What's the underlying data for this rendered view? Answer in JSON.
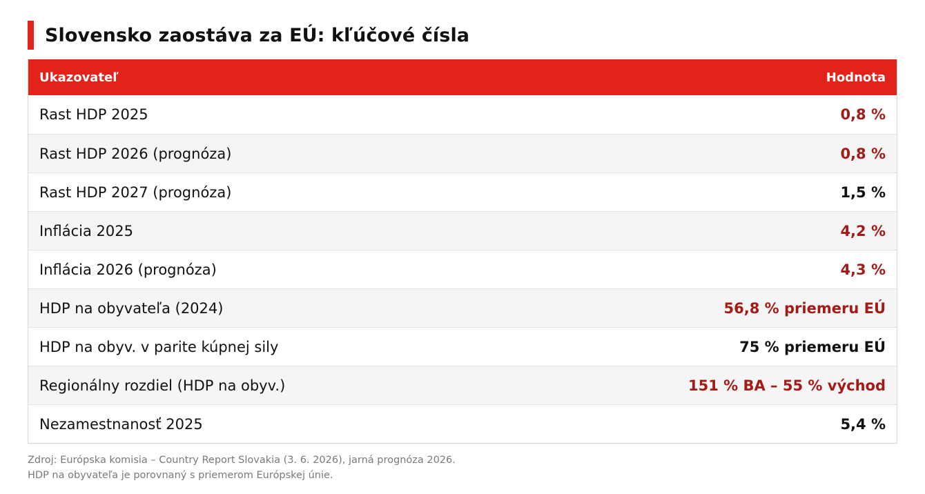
{
  "title": "Slovensko zaostáva za EÚ: kľúčové čísla",
  "table": {
    "header": {
      "indicator": "Ukazovateľ",
      "value": "Hodnota"
    },
    "rows": [
      {
        "label": "Rast HDP 2025",
        "value": "0,8 %",
        "highlight": true
      },
      {
        "label": "Rast HDP 2026 (prognóza)",
        "value": "0,8 %",
        "highlight": true
      },
      {
        "label": "Rast HDP 2027 (prognóza)",
        "value": "1,5 %",
        "highlight": false
      },
      {
        "label": "Inflácia 2025",
        "value": "4,2 %",
        "highlight": true
      },
      {
        "label": "Inflácia 2026 (prognóza)",
        "value": "4,3 %",
        "highlight": true
      },
      {
        "label": "HDP na obyvateľa (2024)",
        "value": "56,8 % priemeru EÚ",
        "highlight": true
      },
      {
        "label": "HDP na obyv. v parite kúpnej sily",
        "value": "75 % priemeru EÚ",
        "highlight": false
      },
      {
        "label": "Regionálny rozdiel (HDP na obyv.)",
        "value": "151 % BA – 55 % východ",
        "highlight": true
      },
      {
        "label": "Nezamestnanosť 2025",
        "value": "5,4 %",
        "highlight": false
      }
    ]
  },
  "footer": {
    "source": "Zdroj: Európska komisia – Country Report Slovakia (3. 6. 2026), jarná prognóza 2026.",
    "note": "HDP na obyvateľa je porovnaný s priemerom Európskej únie."
  },
  "colors": {
    "accent": "#e2231a",
    "highlight_value": "#a31b17",
    "normal_value": "#111111"
  }
}
